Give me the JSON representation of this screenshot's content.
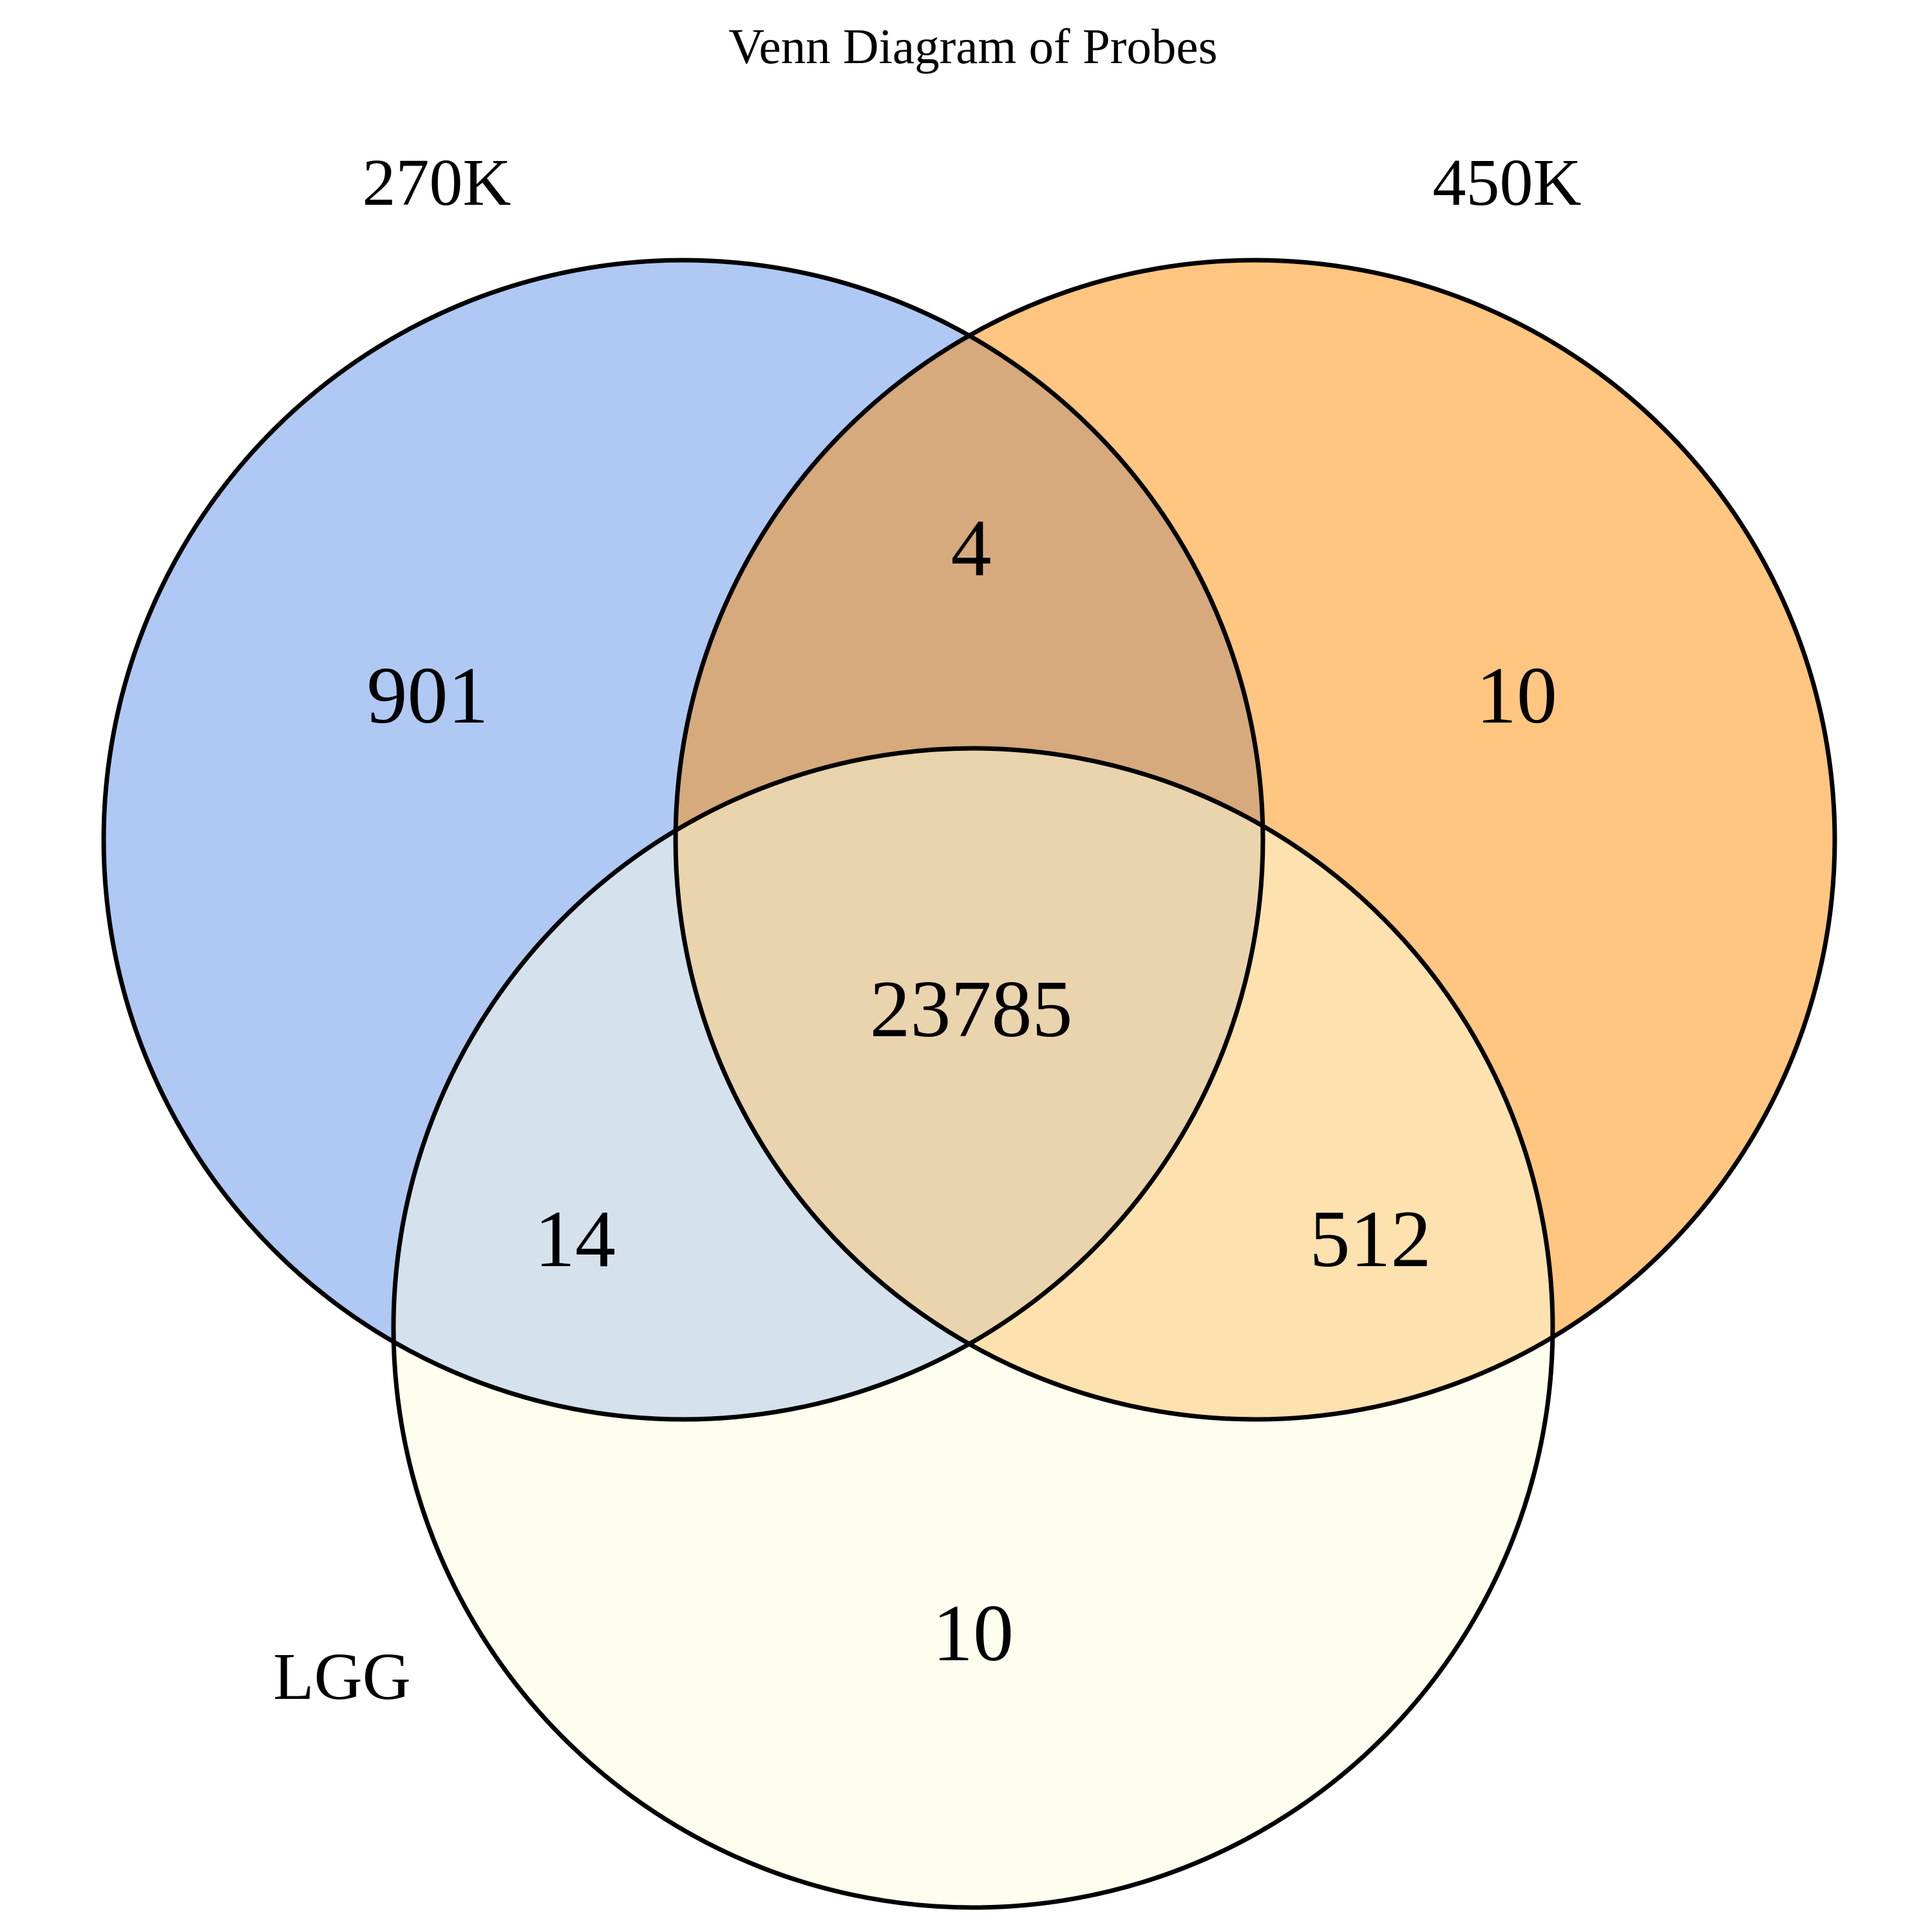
{
  "title": "Venn Diagram of Probes",
  "sets": [
    {
      "key": "a",
      "name": "270K",
      "color": "#B0C9F4"
    },
    {
      "key": "b",
      "name": "450K",
      "color": "#FEC680"
    },
    {
      "key": "c",
      "name": "LGG",
      "color": "#FEFEEF"
    }
  ],
  "regions": {
    "a_only": "901",
    "b_only": "10",
    "c_only": "10",
    "ab_only": "4",
    "ac_only": "14",
    "bc_only": "512",
    "abc": "23785"
  },
  "region_colors": {
    "ab_only": "#D6AA7C",
    "ac_only": "#D5E1EC",
    "bc_only": "#FDE1AF",
    "abc": "#E9D4AD"
  }
}
